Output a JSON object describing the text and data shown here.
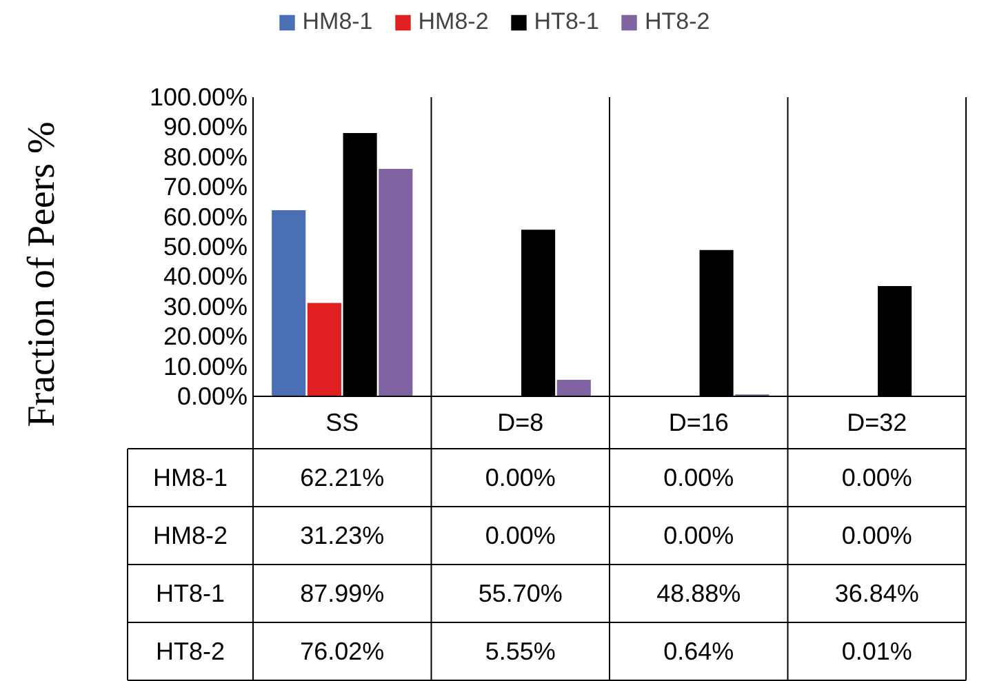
{
  "chart_data": {
    "type": "bar",
    "ylabel": "Fraction of Peers %",
    "categories": [
      "SS",
      "D=8",
      "D=16",
      "D=32"
    ],
    "series": [
      {
        "name": "HM8-1",
        "color": "#4a6fb5",
        "values": [
          62.21,
          0.0,
          0.0,
          0.0
        ],
        "value_labels": [
          "62.21%",
          "0.00%",
          "0.00%",
          "0.00%"
        ]
      },
      {
        "name": "HM8-2",
        "color": "#e02020",
        "values": [
          31.23,
          0.0,
          0.0,
          0.0
        ],
        "value_labels": [
          "31.23%",
          "0.00%",
          "0.00%",
          "0.00%"
        ]
      },
      {
        "name": "HT8-1",
        "color": "#000000",
        "values": [
          87.99,
          55.7,
          48.88,
          36.84
        ],
        "value_labels": [
          "87.99%",
          "55.70%",
          "48.88%",
          "36.84%"
        ]
      },
      {
        "name": "HT8-2",
        "color": "#8064a2",
        "values": [
          76.02,
          5.55,
          0.64,
          0.01
        ],
        "value_labels": [
          "76.02%",
          "5.55%",
          "0.64%",
          "0.01%"
        ]
      }
    ],
    "ylim": [
      0,
      100
    ],
    "yticks": [
      {
        "value": 0,
        "label": "0.00%"
      },
      {
        "value": 10,
        "label": "10.00%"
      },
      {
        "value": 20,
        "label": "20.00%"
      },
      {
        "value": 30,
        "label": "30.00%"
      },
      {
        "value": 40,
        "label": "40.00%"
      },
      {
        "value": 50,
        "label": "50.00%"
      },
      {
        "value": 60,
        "label": "60.00%"
      },
      {
        "value": 70,
        "label": "70.00%"
      },
      {
        "value": 80,
        "label": "80.00%"
      },
      {
        "value": 90,
        "label": "90.00%"
      },
      {
        "value": 100,
        "label": "100.00%"
      }
    ],
    "legend": "top",
    "grid": "x",
    "data_labels": true
  }
}
